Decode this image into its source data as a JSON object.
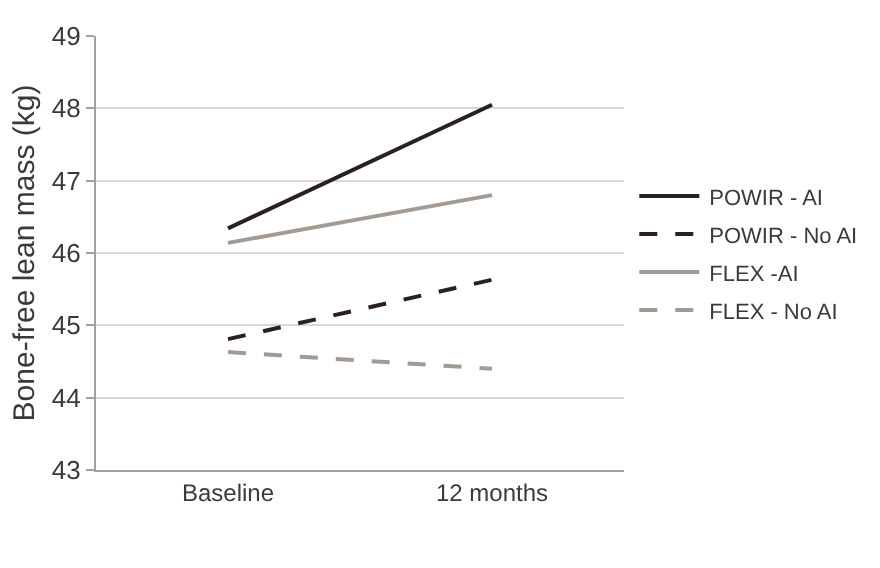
{
  "chart_data": {
    "type": "line",
    "ylabel": "Bone-free lean mass (kg)",
    "categories": [
      "Baseline",
      "12 months"
    ],
    "series": [
      {
        "name": "POWIR - AI",
        "color": "#2a201c",
        "values": [
          46.34,
          48.05
        ],
        "line_style": "solid"
      },
      {
        "name": "POWIR - No AI",
        "color": "#2a201c",
        "values": [
          44.81,
          45.63
        ],
        "line_style": "dashed"
      },
      {
        "name": "FLEX -AI",
        "color": "#a39a94",
        "values": [
          46.14,
          46.8
        ],
        "line_style": "solid"
      },
      {
        "name": "FLEX - No AI",
        "color": "#a39a94",
        "values": [
          44.63,
          44.4
        ],
        "line_style": "dashed"
      }
    ],
    "ylim": [
      43,
      49
    ],
    "yticks": [
      43,
      44,
      45,
      46,
      47,
      48,
      49
    ],
    "grid": "y",
    "legend": "right",
    "marker": "none"
  }
}
